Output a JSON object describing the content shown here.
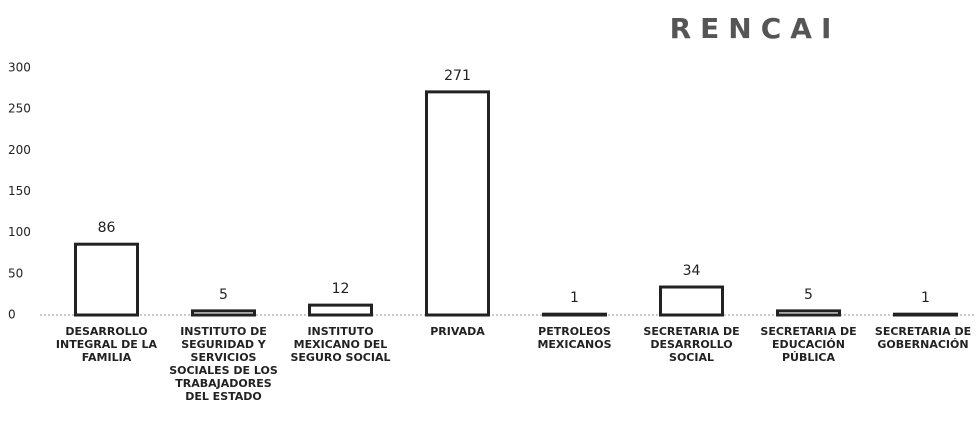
{
  "chart_data": {
    "type": "bar",
    "title": "RENCAI",
    "categories": [
      "DESARROLLO INTEGRAL DE LA FAMILIA",
      "INSTITUTO DE SEGURIDAD Y SERVICIOS SOCIALES DE LOS TRABAJADORES DEL ESTADO",
      "INSTITUTO MEXICANO DEL SEGURO SOCIAL",
      "PRIVADA",
      "PETROLEOS MEXICANOS",
      "SECRETARIA DE DESARROLLO SOCIAL",
      "SECRETARIA DE EDUCACIÓN PÚBLICA",
      "SECRETARIA DE GOBERNACIÓN"
    ],
    "values": [
      86,
      5,
      12,
      271,
      1,
      34,
      5,
      1
    ],
    "color": "#ffffff",
    "stroke": "#222222",
    "ylim": [
      0,
      300
    ],
    "yticks": [
      0,
      50,
      100,
      150,
      200,
      250,
      300
    ],
    "grid": false
  }
}
